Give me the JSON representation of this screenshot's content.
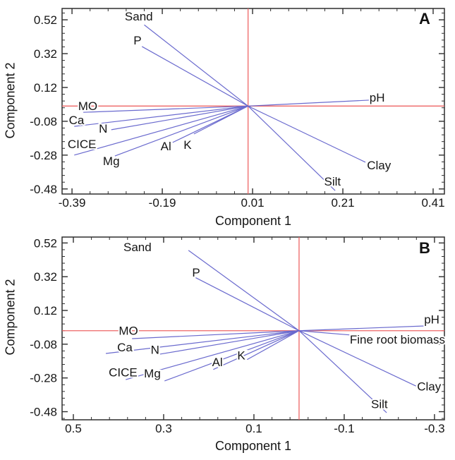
{
  "figure": {
    "background": "#ffffff"
  },
  "colors": {
    "vector_line": "#6a6ace",
    "crosshair_line": "#ee6565",
    "axis_frame": "#2e2e2e",
    "text": "#151515"
  },
  "chart_data": [
    {
      "type": "line",
      "chart_kind": "pca-biplot-loading-vectors",
      "panel_label": "A",
      "xlabel": "Component 1",
      "ylabel": "Component 2",
      "xlim": [
        -0.412,
        0.435
      ],
      "ylim": [
        -0.51,
        0.587
      ],
      "x_ticks": [
        {
          "v": -0.39,
          "label": "-0.39"
        },
        {
          "v": -0.19,
          "label": "-0.19"
        },
        {
          "v": 0.01,
          "label": "0.01"
        },
        {
          "v": 0.21,
          "label": "0.21"
        },
        {
          "v": 0.41,
          "label": "0.41"
        }
      ],
      "y_ticks": [
        {
          "v": 0.52,
          "label": "0.52"
        },
        {
          "v": 0.32,
          "label": "0.32"
        },
        {
          "v": 0.12,
          "label": "0.12"
        },
        {
          "v": -0.08,
          "label": "-0.08"
        },
        {
          "v": -0.28,
          "label": "-0.28"
        },
        {
          "v": -0.48,
          "label": "-0.48"
        }
      ],
      "minor_tick_step": 0.04,
      "grid": false,
      "crosshair": {
        "x": 0.0,
        "y": 0.01
      },
      "origin": [
        0.0,
        0.01
      ],
      "vectors": [
        {
          "name": "Sand",
          "x": -0.23,
          "y": 0.49,
          "label_x": -0.242,
          "label_y": 0.541
        },
        {
          "name": "P",
          "x": -0.235,
          "y": 0.362,
          "label_x": -0.245,
          "label_y": 0.4
        },
        {
          "name": "pH",
          "x": 0.268,
          "y": 0.045,
          "label_x": 0.286,
          "label_y": 0.062
        },
        {
          "name": "MO",
          "x": -0.365,
          "y": -0.027,
          "label_x": -0.355,
          "label_y": 0.012
        },
        {
          "name": "Ca",
          "x": -0.385,
          "y": -0.11,
          "label_x": -0.38,
          "label_y": -0.072
        },
        {
          "name": "N",
          "x": -0.303,
          "y": -0.13,
          "label_x": -0.321,
          "label_y": -0.122
        },
        {
          "name": "CICE",
          "x": -0.385,
          "y": -0.28,
          "label_x": -0.368,
          "label_y": -0.213
        },
        {
          "name": "Mg",
          "x": -0.295,
          "y": -0.285,
          "label_x": -0.303,
          "label_y": -0.313
        },
        {
          "name": "Al",
          "x": -0.167,
          "y": -0.205,
          "label_x": -0.182,
          "label_y": -0.226
        },
        {
          "name": "K",
          "x": -0.12,
          "y": -0.155,
          "label_x": -0.134,
          "label_y": -0.218
        },
        {
          "name": "Clay",
          "x": 0.26,
          "y": -0.322,
          "label_x": 0.29,
          "label_y": -0.338
        },
        {
          "name": "Silt",
          "x": 0.193,
          "y": -0.49,
          "label_x": 0.187,
          "label_y": -0.434
        }
      ]
    },
    {
      "type": "line",
      "chart_kind": "pca-biplot-loading-vectors",
      "panel_label": "B",
      "xlabel": "Component 1",
      "ylabel": "Component 2",
      "xlim": [
        0.525,
        -0.322
      ],
      "ylim": [
        -0.528,
        0.555
      ],
      "x_ticks": [
        {
          "v": 0.5,
          "label": "0.5"
        },
        {
          "v": 0.3,
          "label": "0.3"
        },
        {
          "v": 0.1,
          "label": "0.1"
        },
        {
          "v": -0.1,
          "label": "-0.1"
        },
        {
          "v": -0.3,
          "label": "-0.3"
        }
      ],
      "y_ticks": [
        {
          "v": 0.52,
          "label": "0.52"
        },
        {
          "v": 0.32,
          "label": "0.32"
        },
        {
          "v": 0.12,
          "label": "0.12"
        },
        {
          "v": -0.08,
          "label": "-0.08"
        },
        {
          "v": -0.28,
          "label": "-0.28"
        },
        {
          "v": -0.48,
          "label": "-0.48"
        }
      ],
      "minor_tick_step": 0.04,
      "grid": false,
      "crosshair": {
        "x": 0.0,
        "y": 0.0
      },
      "origin": [
        0.0,
        0.0
      ],
      "vectors": [
        {
          "name": "Sand",
          "x": 0.245,
          "y": 0.476,
          "label_x": 0.358,
          "label_y": 0.497
        },
        {
          "name": "P",
          "x": 0.231,
          "y": 0.317,
          "label_x": 0.228,
          "label_y": 0.345
        },
        {
          "name": "pH",
          "x": -0.278,
          "y": 0.028,
          "label_x": -0.294,
          "label_y": 0.068
        },
        {
          "name": "Fine root biomass",
          "x": -0.116,
          "y": -0.026,
          "label_x": -0.218,
          "label_y": -0.052
        },
        {
          "name": "MO",
          "x": 0.37,
          "y": -0.047,
          "label_x": 0.378,
          "label_y": 0.002
        },
        {
          "name": "Ca",
          "x": 0.428,
          "y": -0.135,
          "label_x": 0.386,
          "label_y": -0.098
        },
        {
          "name": "N",
          "x": 0.308,
          "y": -0.139,
          "label_x": 0.319,
          "label_y": -0.112
        },
        {
          "name": "CICE",
          "x": 0.384,
          "y": -0.29,
          "label_x": 0.39,
          "label_y": -0.245
        },
        {
          "name": "Mg",
          "x": 0.298,
          "y": -0.298,
          "label_x": 0.325,
          "label_y": -0.253
        },
        {
          "name": "Al",
          "x": 0.19,
          "y": -0.23,
          "label_x": 0.181,
          "label_y": -0.186
        },
        {
          "name": "K",
          "x": 0.119,
          "y": -0.177,
          "label_x": 0.128,
          "label_y": -0.145
        },
        {
          "name": "Clay",
          "x": -0.259,
          "y": -0.328,
          "label_x": -0.288,
          "label_y": -0.329
        },
        {
          "name": "Silt",
          "x": -0.194,
          "y": -0.486,
          "label_x": -0.178,
          "label_y": -0.433
        }
      ]
    }
  ]
}
